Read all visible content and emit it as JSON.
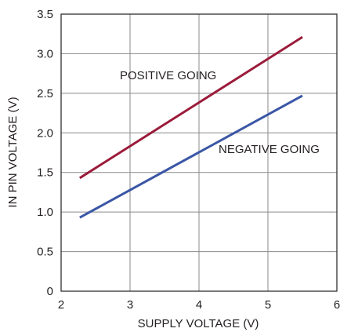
{
  "chart_data": {
    "type": "line",
    "title": "",
    "xlabel": "SUPPLY VOLTAGE (V)",
    "ylabel": "IN PIN VOLTAGE (V)",
    "xlim": [
      2,
      6
    ],
    "ylim": [
      0,
      3.5
    ],
    "x_ticks": [
      "2",
      "3",
      "4",
      "5",
      "6"
    ],
    "y_ticks": [
      "0",
      "0.5",
      "1.0",
      "1.5",
      "2.0",
      "2.5",
      "3.0",
      "3.5"
    ],
    "grid": true,
    "legend": "none",
    "series": [
      {
        "name": "POSITIVE GOING",
        "color": "#9b1b3a",
        "x": [
          2.27,
          5.5
        ],
        "y": [
          1.43,
          3.21
        ]
      },
      {
        "name": "NEGATIVE GOING",
        "color": "#3a56a6",
        "x": [
          2.27,
          5.5
        ],
        "y": [
          0.93,
          2.47
        ]
      }
    ],
    "annotations": [
      {
        "text": "POSITIVE GOING",
        "series": 0
      },
      {
        "text": "NEGATIVE GOING",
        "series": 1
      }
    ]
  }
}
